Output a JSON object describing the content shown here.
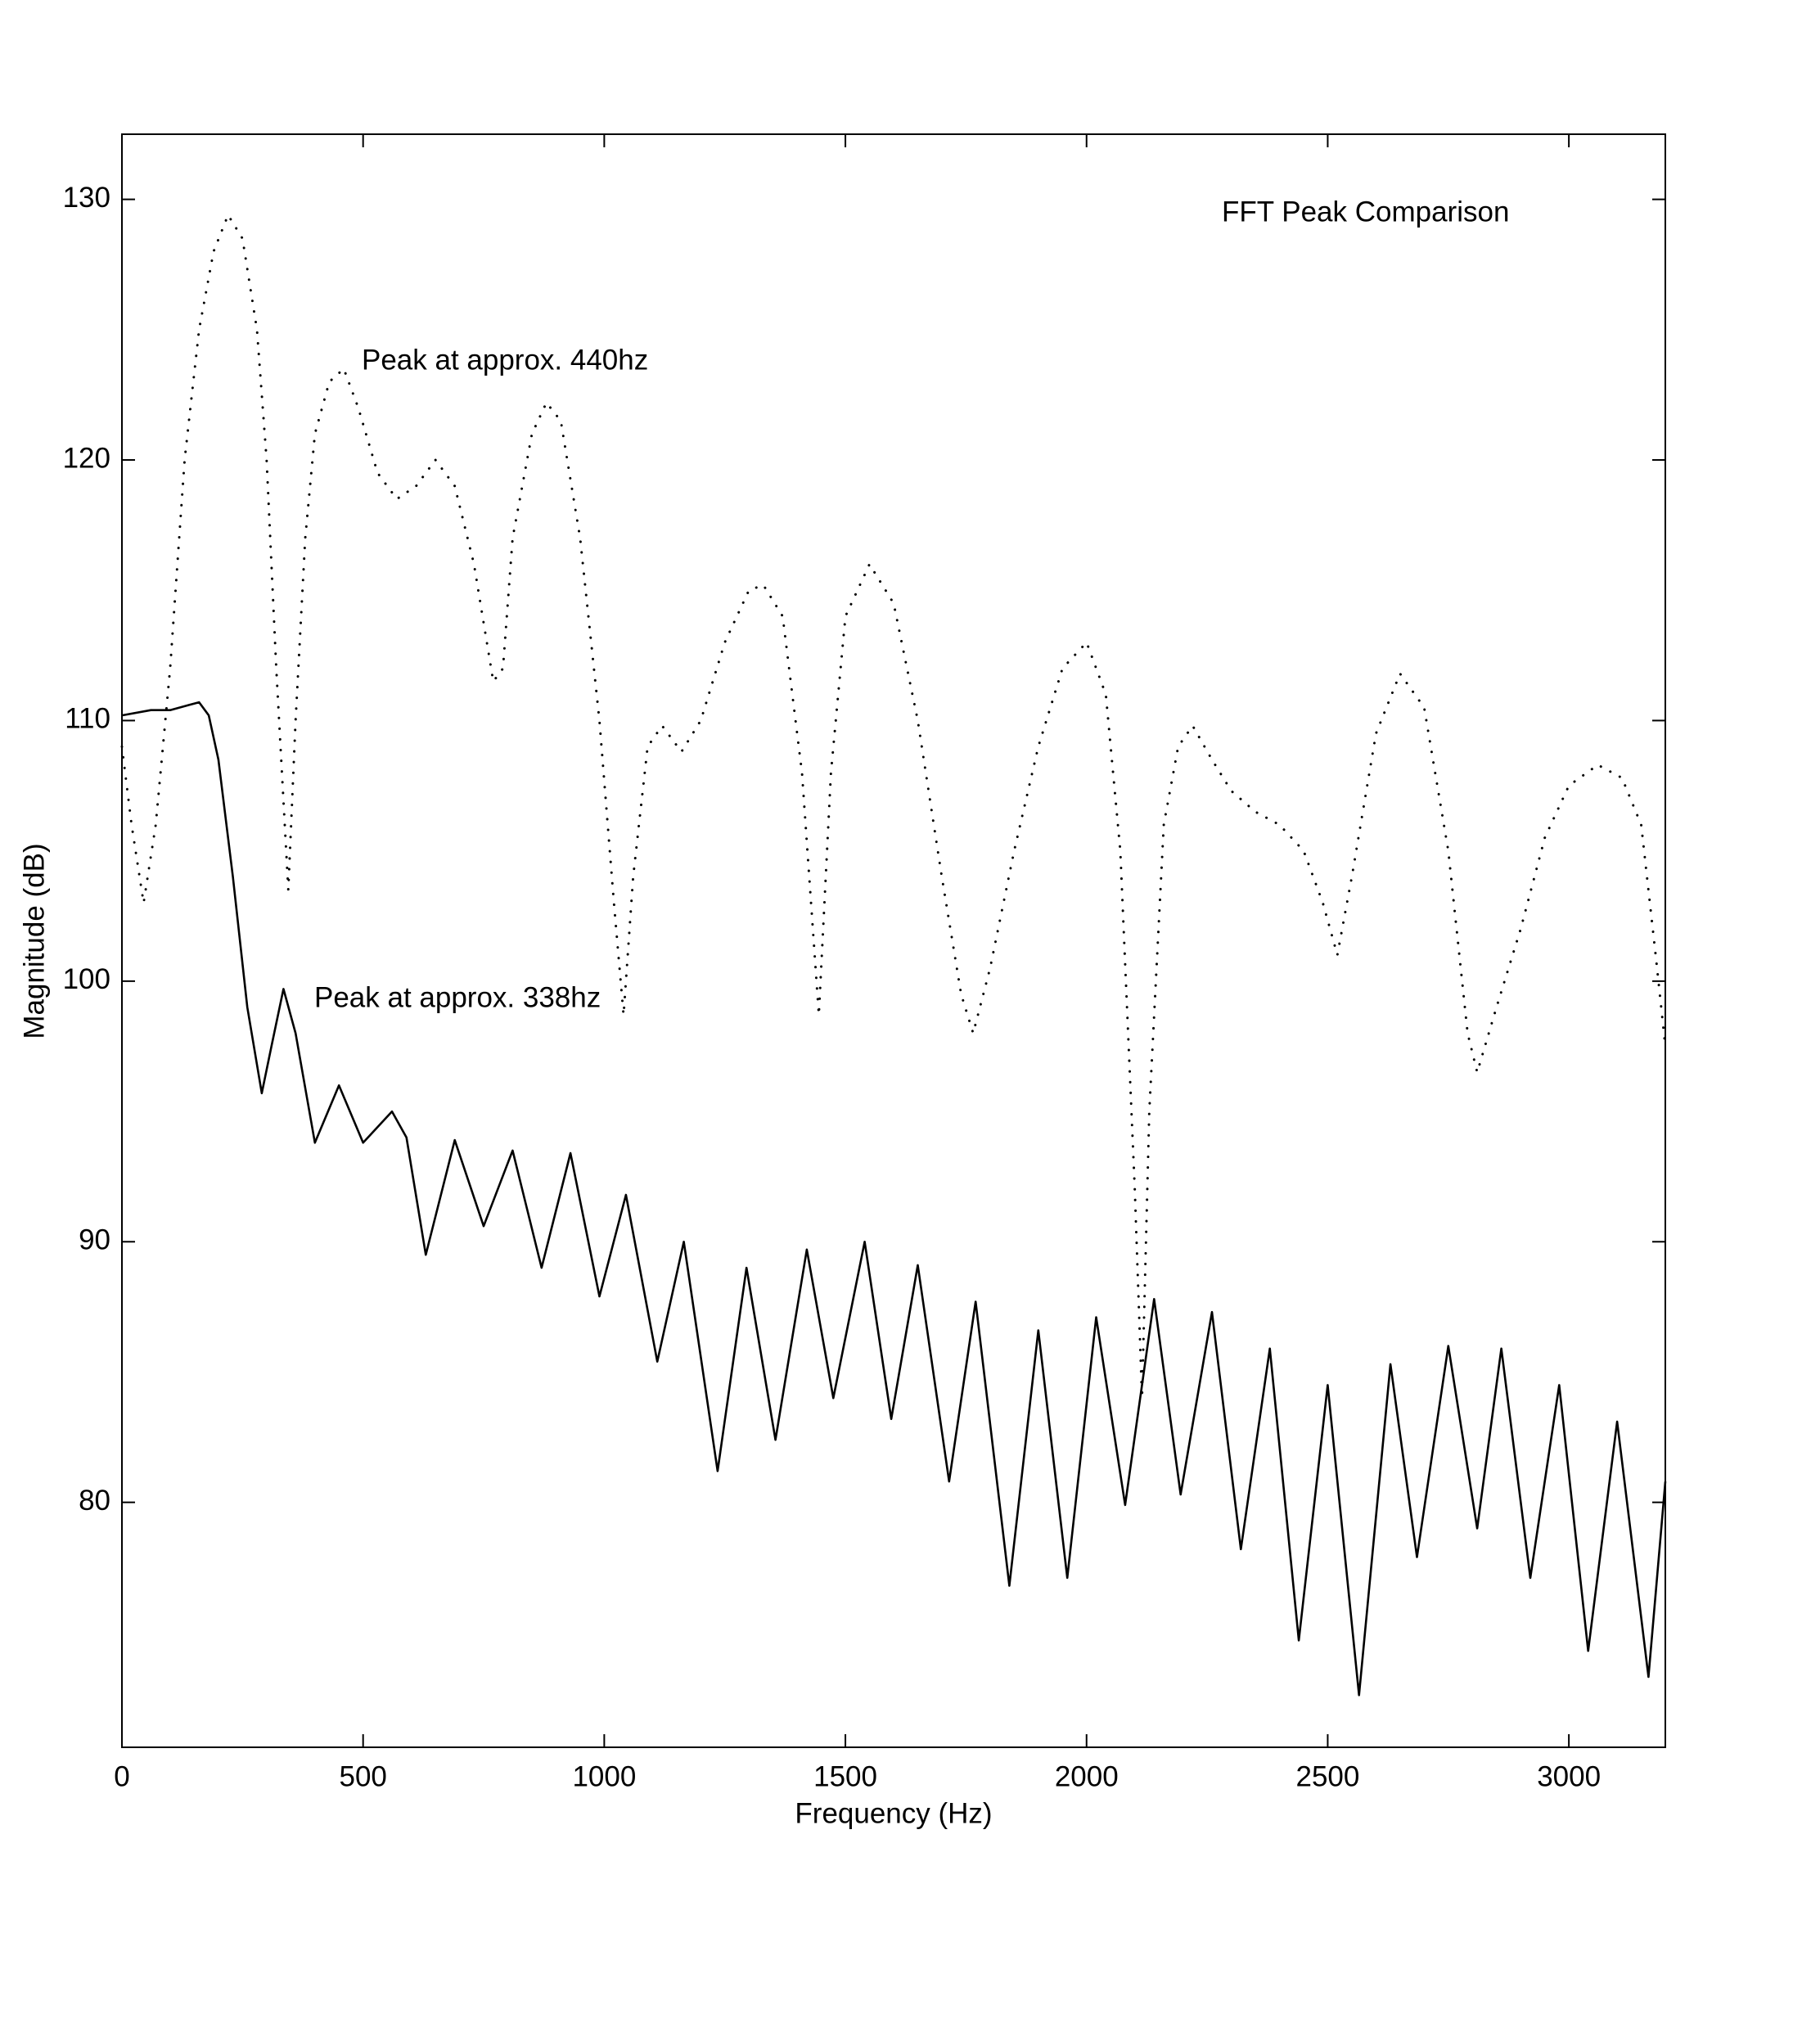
{
  "chart_data": {
    "type": "line",
    "title": "FFT Peak Comparison",
    "x_label": "Frequency (Hz)",
    "y_label": "Magnitude (dB)",
    "annotations": [
      "Peak at approx. 440hz",
      "Peak at approx. 338hz"
    ],
    "xlim": [
      0,
      3200
    ],
    "ylim": [
      70.6,
      132.5
    ],
    "xticks": [
      0,
      500,
      1000,
      1500,
      2000,
      2500,
      3000
    ],
    "yticks": [
      80,
      90,
      100,
      110,
      120,
      130
    ],
    "series": [
      {
        "color": "#000000",
        "style": "dotted",
        "x": [
          0,
          20,
          45,
          70,
          100,
          130,
          160,
          190,
          220,
          250,
          280,
          300,
          320,
          345,
          360,
          380,
          400,
          430,
          460,
          490,
          530,
          570,
          610,
          650,
          690,
          730,
          770,
          790,
          810,
          850,
          880,
          910,
          950,
          990,
          1020,
          1040,
          1060,
          1090,
          1120,
          1160,
          1200,
          1250,
          1300,
          1330,
          1370,
          1410,
          1445,
          1470,
          1500,
          1550,
          1600,
          1650,
          1700,
          1740,
          1765,
          1800,
          1850,
          1900,
          1950,
          2000,
          2040,
          2070,
          2100,
          2115,
          2130,
          2160,
          2190,
          2220,
          2260,
          2300,
          2350,
          2400,
          2450,
          2490,
          2520,
          2550,
          2600,
          2650,
          2700,
          2750,
          2790,
          2810,
          2850,
          2900,
          2950,
          3000,
          3060,
          3110,
          3150,
          3180,
          3200
        ],
        "values": [
          109,
          106,
          103,
          106,
          112,
          120,
          125,
          128,
          129.4,
          128.5,
          125,
          120,
          112,
          103.5,
          110,
          117,
          121,
          123,
          123.5,
          122,
          119.5,
          118.5,
          119,
          120,
          119,
          116,
          111.5,
          112,
          117,
          121,
          122.2,
          121.5,
          117,
          110,
          103,
          98.7,
          104,
          109,
          109.8,
          108.8,
          110,
          113,
          115,
          115.2,
          114,
          108,
          98.7,
          108,
          114,
          116,
          114.5,
          110,
          104,
          99.5,
          98,
          100.5,
          105,
          109,
          112,
          113,
          111,
          105,
          92,
          84,
          95,
          106,
          109,
          109.8,
          108.5,
          107.3,
          106.5,
          106,
          105,
          103,
          101,
          104,
          109.5,
          111.8,
          110.5,
          105,
          98,
          96.5,
          99,
          102,
          105.5,
          107.5,
          108.3,
          107.8,
          106,
          101,
          97.5
        ]
      },
      {
        "color": "#000000",
        "style": "solid",
        "x": [
          0,
          60,
          100,
          140,
          160,
          180,
          200,
          230,
          260,
          290,
          310,
          335,
          360,
          400,
          450,
          500,
          560,
          590,
          630,
          690,
          750,
          810,
          870,
          930,
          990,
          1045,
          1110,
          1165,
          1235,
          1295,
          1355,
          1420,
          1475,
          1540,
          1595,
          1650,
          1715,
          1770,
          1840,
          1900,
          1960,
          2020,
          2080,
          2140,
          2195,
          2260,
          2320,
          2380,
          2440,
          2500,
          2565,
          2630,
          2685,
          2750,
          2810,
          2860,
          2920,
          2980,
          3040,
          3100,
          3165,
          3200
        ],
        "values": [
          110.2,
          110.4,
          110.4,
          110.6,
          110.7,
          110.2,
          108.5,
          104,
          99,
          95.7,
          97.5,
          99.7,
          98,
          93.8,
          96,
          93.8,
          95,
          94,
          89.5,
          93.9,
          90.6,
          93.5,
          89,
          93.4,
          87.9,
          91.8,
          85.4,
          90,
          81.2,
          89,
          82.4,
          89.7,
          84,
          90,
          83.2,
          89.1,
          80.8,
          87.7,
          76.8,
          86.6,
          77.1,
          87.1,
          79.9,
          87.8,
          80.3,
          87.3,
          78.2,
          85.9,
          74.7,
          84.5,
          72.6,
          85.3,
          77.9,
          86,
          79,
          85.9,
          77.1,
          84.5,
          74.3,
          83.1,
          73.3,
          80.8
        ]
      }
    ]
  }
}
